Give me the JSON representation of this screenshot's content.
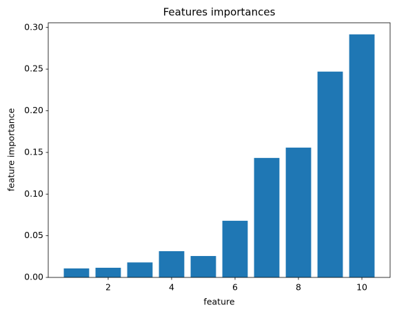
{
  "chart_data": {
    "type": "bar",
    "title": "Features importances",
    "x_label": "feature",
    "y_label": "feature importance",
    "x": [
      1,
      2,
      3,
      4,
      5,
      6,
      7,
      8,
      9,
      10
    ],
    "values": [
      0.0108,
      0.0116,
      0.018,
      0.0315,
      0.0257,
      0.068,
      0.1434,
      0.1558,
      0.247,
      0.2917
    ],
    "color": "#1f77b4",
    "xlim": [
      0.11,
      10.89
    ],
    "xticks": [
      2,
      4,
      6,
      8,
      10
    ],
    "ylim": [
      0,
      0.3056
    ],
    "yticks": [
      {
        "value": 0,
        "label": "0.00"
      },
      {
        "value": 0.05,
        "label": "0.05"
      },
      {
        "value": 0.1,
        "label": "0.10"
      },
      {
        "value": 0.15,
        "label": "0.15"
      },
      {
        "value": 0.2,
        "label": "0.20"
      },
      {
        "value": 0.25,
        "label": "0.25"
      },
      {
        "value": 0.3,
        "label": "0.30"
      }
    ],
    "grid": false
  }
}
